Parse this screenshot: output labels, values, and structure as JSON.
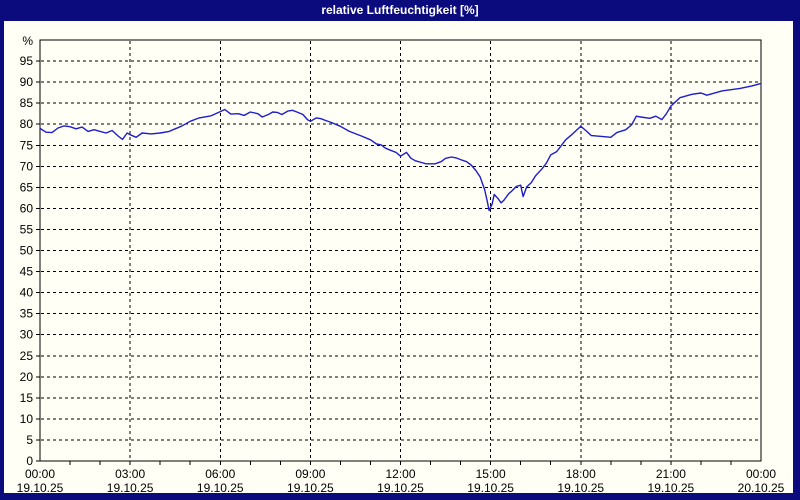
{
  "window": {
    "title": "relative Luftfeuchtigkeit [%]"
  },
  "colors": {
    "frame": "#0b0b7d",
    "titlebar_text": "#ffffff",
    "paper": "#fffff6",
    "plot_border": "#000000",
    "grid": "#000000",
    "axis_label": "#000000",
    "line": "#1e1ec8"
  },
  "chart_data": {
    "type": "line",
    "title": "relative Luftfeuchtigkeit [%]",
    "ylabel": "%",
    "y_axis_top_label": "%",
    "ylim": [
      0,
      100
    ],
    "xlim_hours": [
      0,
      24
    ],
    "grid": "dashed",
    "legend_position": "none",
    "y_ticks": [
      0,
      5,
      10,
      15,
      20,
      25,
      30,
      35,
      40,
      45,
      50,
      55,
      60,
      65,
      70,
      75,
      80,
      85,
      90,
      95
    ],
    "x_minor_tick_every_hours": 1,
    "x_major_ticks": [
      {
        "hour": 0,
        "time": "00:00",
        "date": "19.10.25"
      },
      {
        "hour": 3,
        "time": "03:00",
        "date": "19.10.25"
      },
      {
        "hour": 6,
        "time": "06:00",
        "date": "19.10.25"
      },
      {
        "hour": 9,
        "time": "09:00",
        "date": "19.10.25"
      },
      {
        "hour": 12,
        "time": "12:00",
        "date": "19.10.25"
      },
      {
        "hour": 15,
        "time": "15:00",
        "date": "19.10.25"
      },
      {
        "hour": 18,
        "time": "18:00",
        "date": "19.10.25"
      },
      {
        "hour": 21,
        "time": "21:00",
        "date": "19.10.25"
      },
      {
        "hour": 24,
        "time": "00:00",
        "date": "20.10.25"
      }
    ],
    "series": [
      {
        "name": "relative Luftfeuchtigkeit",
        "unit": "%",
        "color": "#1e1ec8",
        "points_hour_value": [
          [
            0,
            79.0
          ],
          [
            0.2,
            78.1
          ],
          [
            0.4,
            78.0
          ],
          [
            0.6,
            79.1
          ],
          [
            0.8,
            79.6
          ],
          [
            1,
            79.4
          ],
          [
            1.2,
            78.9
          ],
          [
            1.4,
            79.3
          ],
          [
            1.6,
            78.3
          ],
          [
            1.8,
            78.7
          ],
          [
            2,
            78.3
          ],
          [
            2.2,
            77.9
          ],
          [
            2.4,
            78.5
          ],
          [
            2.6,
            77.2
          ],
          [
            2.75,
            76.4
          ],
          [
            2.9,
            77.9
          ],
          [
            3,
            77.5
          ],
          [
            3.2,
            76.9
          ],
          [
            3.4,
            77.9
          ],
          [
            3.7,
            77.7
          ],
          [
            4,
            77.9
          ],
          [
            4.3,
            78.3
          ],
          [
            4.5,
            78.9
          ],
          [
            4.7,
            79.5
          ],
          [
            5,
            80.7
          ],
          [
            5.3,
            81.5
          ],
          [
            5.7,
            82.0
          ],
          [
            6,
            83.0
          ],
          [
            6.15,
            83.5
          ],
          [
            6.35,
            82.4
          ],
          [
            6.6,
            82.5
          ],
          [
            6.8,
            82.1
          ],
          [
            7,
            82.9
          ],
          [
            7.25,
            82.5
          ],
          [
            7.4,
            81.7
          ],
          [
            7.6,
            82.3
          ],
          [
            7.75,
            82.9
          ],
          [
            7.9,
            82.8
          ],
          [
            8.05,
            82.3
          ],
          [
            8.25,
            83.1
          ],
          [
            8.4,
            83.3
          ],
          [
            8.55,
            82.9
          ],
          [
            8.75,
            82.3
          ],
          [
            8.9,
            81.1
          ],
          [
            9,
            80.7
          ],
          [
            9.2,
            81.5
          ],
          [
            9.35,
            81.3
          ],
          [
            9.5,
            80.9
          ],
          [
            9.7,
            80.4
          ],
          [
            10,
            79.5
          ],
          [
            10.3,
            78.3
          ],
          [
            10.7,
            77.2
          ],
          [
            11,
            76.3
          ],
          [
            11.2,
            75.3
          ],
          [
            11.35,
            75.1
          ],
          [
            11.5,
            74.3
          ],
          [
            11.7,
            73.7
          ],
          [
            11.85,
            73.3
          ],
          [
            12,
            72.4
          ],
          [
            12.2,
            73.3
          ],
          [
            12.35,
            71.9
          ],
          [
            12.5,
            71.3
          ],
          [
            12.7,
            70.9
          ],
          [
            12.85,
            70.6
          ],
          [
            13.15,
            70.6
          ],
          [
            13.35,
            71.1
          ],
          [
            13.5,
            71.9
          ],
          [
            13.7,
            72.2
          ],
          [
            13.85,
            72.0
          ],
          [
            14,
            71.6
          ],
          [
            14.2,
            71.1
          ],
          [
            14.35,
            70.3
          ],
          [
            14.5,
            69.1
          ],
          [
            14.65,
            67.5
          ],
          [
            14.8,
            64.5
          ],
          [
            14.88,
            62.0
          ],
          [
            14.95,
            59.5
          ],
          [
            15.05,
            61.0
          ],
          [
            15.12,
            63.3
          ],
          [
            15.25,
            62.3
          ],
          [
            15.35,
            61.3
          ],
          [
            15.45,
            62.0
          ],
          [
            15.6,
            63.5
          ],
          [
            15.7,
            64.1
          ],
          [
            15.85,
            65.2
          ],
          [
            16,
            65.5
          ],
          [
            16.08,
            62.8
          ],
          [
            16.2,
            65.1
          ],
          [
            16.35,
            66.1
          ],
          [
            16.5,
            67.8
          ],
          [
            16.7,
            69.3
          ],
          [
            16.85,
            70.7
          ],
          [
            17,
            72.7
          ],
          [
            17.2,
            73.5
          ],
          [
            17.35,
            74.9
          ],
          [
            17.5,
            76.3
          ],
          [
            17.7,
            77.5
          ],
          [
            17.85,
            78.5
          ],
          [
            18,
            79.5
          ],
          [
            18.2,
            78.3
          ],
          [
            18.35,
            77.3
          ],
          [
            18.7,
            77.1
          ],
          [
            19,
            76.9
          ],
          [
            19.2,
            78.0
          ],
          [
            19.5,
            78.7
          ],
          [
            19.7,
            79.9
          ],
          [
            19.85,
            81.9
          ],
          [
            20,
            81.7
          ],
          [
            20.3,
            81.4
          ],
          [
            20.5,
            81.9
          ],
          [
            20.7,
            81.1
          ],
          [
            20.85,
            82.5
          ],
          [
            21,
            84.3
          ],
          [
            21.3,
            86.3
          ],
          [
            21.7,
            87.1
          ],
          [
            22,
            87.4
          ],
          [
            22.2,
            86.9
          ],
          [
            22.7,
            87.9
          ],
          [
            23.3,
            88.5
          ],
          [
            23.7,
            89.1
          ],
          [
            24,
            89.7
          ]
        ]
      }
    ]
  }
}
